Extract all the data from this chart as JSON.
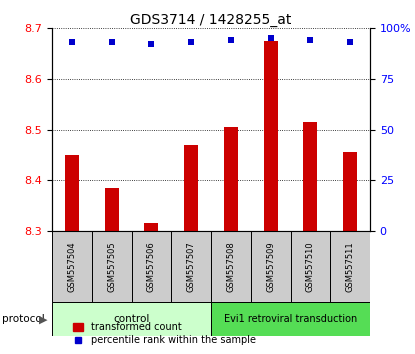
{
  "title": "GDS3714 / 1428255_at",
  "samples": [
    "GSM557504",
    "GSM557505",
    "GSM557506",
    "GSM557507",
    "GSM557508",
    "GSM557509",
    "GSM557510",
    "GSM557511"
  ],
  "bar_values": [
    8.45,
    8.385,
    8.315,
    8.47,
    8.505,
    8.675,
    8.515,
    8.455
  ],
  "percentile_values": [
    93,
    93,
    92,
    93,
    94,
    95,
    94,
    93
  ],
  "bar_color": "#cc0000",
  "dot_color": "#0000cc",
  "ylim_left": [
    8.3,
    8.7
  ],
  "ylim_right": [
    0,
    100
  ],
  "yticks_left": [
    8.3,
    8.4,
    8.5,
    8.6,
    8.7
  ],
  "yticks_right": [
    0,
    25,
    50,
    75,
    100
  ],
  "control_label": "control",
  "treatment_label": "Evi1 retroviral transduction",
  "protocol_label": "protocol",
  "legend_bar_label": "transformed count",
  "legend_dot_label": "percentile rank within the sample",
  "control_bg": "#ccffcc",
  "treatment_bg": "#55dd55",
  "sample_label_bg": "#cccccc",
  "bar_base": 8.3,
  "n_control": 4,
  "n_treatment": 4,
  "bar_width": 0.35,
  "title_fontsize": 10,
  "tick_fontsize": 8,
  "label_fontsize": 7
}
